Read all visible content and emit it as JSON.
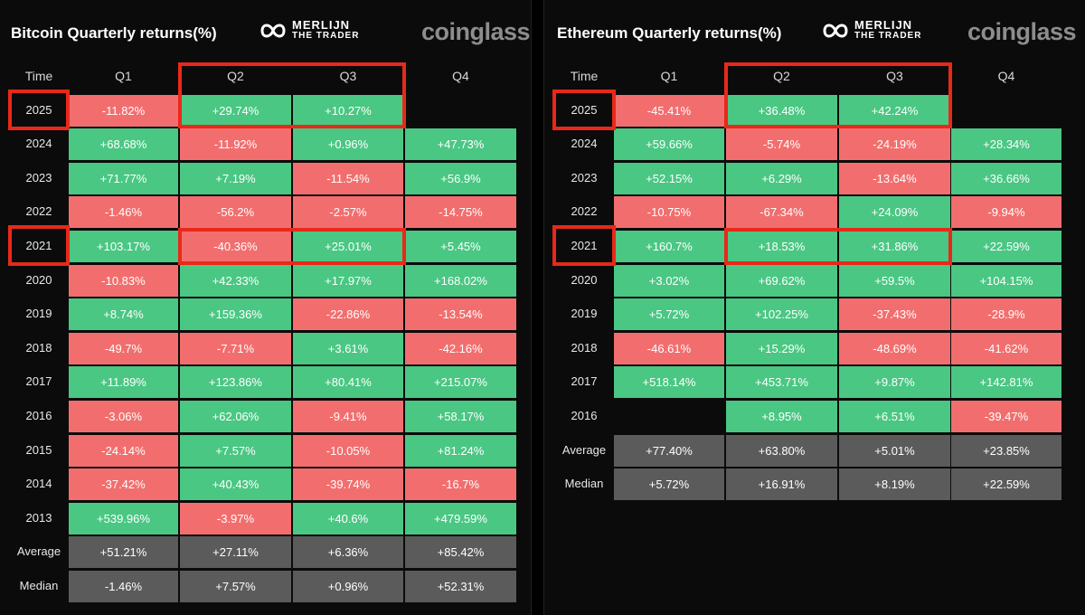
{
  "colors": {
    "positive": "#4ac783",
    "negative": "#f26e6e",
    "stat": "#5b5b5b",
    "highlight": "#e8291a"
  },
  "brand": {
    "line1": "MERLIJN",
    "line2": "THE TRADER",
    "watermark": "coinglass",
    "logo_icon": "infinity-logo-icon"
  },
  "chart_data": [
    {
      "type": "table",
      "title": "Bitcoin Quarterly returns(%)",
      "columns": [
        "Time",
        "Q1",
        "Q2",
        "Q3",
        "Q4"
      ],
      "rows": [
        {
          "year": "2025",
          "values": [
            "-11.82%",
            "+29.74%",
            "+10.27%",
            ""
          ]
        },
        {
          "year": "2024",
          "values": [
            "+68.68%",
            "-11.92%",
            "+0.96%",
            "+47.73%"
          ]
        },
        {
          "year": "2023",
          "values": [
            "+71.77%",
            "+7.19%",
            "-11.54%",
            "+56.9%"
          ]
        },
        {
          "year": "2022",
          "values": [
            "-1.46%",
            "-56.2%",
            "-2.57%",
            "-14.75%"
          ]
        },
        {
          "year": "2021",
          "values": [
            "+103.17%",
            "-40.36%",
            "+25.01%",
            "+5.45%"
          ]
        },
        {
          "year": "2020",
          "values": [
            "-10.83%",
            "+42.33%",
            "+17.97%",
            "+168.02%"
          ]
        },
        {
          "year": "2019",
          "values": [
            "+8.74%",
            "+159.36%",
            "-22.86%",
            "-13.54%"
          ]
        },
        {
          "year": "2018",
          "values": [
            "-49.7%",
            "-7.71%",
            "+3.61%",
            "-42.16%"
          ]
        },
        {
          "year": "2017",
          "values": [
            "+11.89%",
            "+123.86%",
            "+80.41%",
            "+215.07%"
          ]
        },
        {
          "year": "2016",
          "values": [
            "-3.06%",
            "+62.06%",
            "-9.41%",
            "+58.17%"
          ]
        },
        {
          "year": "2015",
          "values": [
            "-24.14%",
            "+7.57%",
            "-10.05%",
            "+81.24%"
          ]
        },
        {
          "year": "2014",
          "values": [
            "-37.42%",
            "+40.43%",
            "-39.74%",
            "-16.7%"
          ]
        },
        {
          "year": "2013",
          "values": [
            "+539.96%",
            "-3.97%",
            "+40.6%",
            "+479.59%"
          ]
        }
      ],
      "stats": [
        {
          "label": "Average",
          "values": [
            "+51.21%",
            "+27.11%",
            "+6.36%",
            "+85.42%"
          ]
        },
        {
          "label": "Median",
          "values": [
            "-1.46%",
            "+7.57%",
            "+0.96%",
            "+52.31%"
          ]
        }
      ],
      "highlights": [
        "Q2-Q3 header",
        "2025",
        "2025 Q2-Q3",
        "2021",
        "2021 Q2-Q3"
      ]
    },
    {
      "type": "table",
      "title": "Ethereum Quarterly returns(%)",
      "columns": [
        "Time",
        "Q1",
        "Q2",
        "Q3",
        "Q4"
      ],
      "rows": [
        {
          "year": "2025",
          "values": [
            "-45.41%",
            "+36.48%",
            "+42.24%",
            ""
          ]
        },
        {
          "year": "2024",
          "values": [
            "+59.66%",
            "-5.74%",
            "-24.19%",
            "+28.34%"
          ]
        },
        {
          "year": "2023",
          "values": [
            "+52.15%",
            "+6.29%",
            "-13.64%",
            "+36.66%"
          ]
        },
        {
          "year": "2022",
          "values": [
            "-10.75%",
            "-67.34%",
            "+24.09%",
            "-9.94%"
          ]
        },
        {
          "year": "2021",
          "values": [
            "+160.7%",
            "+18.53%",
            "+31.86%",
            "+22.59%"
          ]
        },
        {
          "year": "2020",
          "values": [
            "+3.02%",
            "+69.62%",
            "+59.5%",
            "+104.15%"
          ]
        },
        {
          "year": "2019",
          "values": [
            "+5.72%",
            "+102.25%",
            "-37.43%",
            "-28.9%"
          ]
        },
        {
          "year": "2018",
          "values": [
            "-46.61%",
            "+15.29%",
            "-48.69%",
            "-41.62%"
          ]
        },
        {
          "year": "2017",
          "values": [
            "+518.14%",
            "+453.71%",
            "+9.87%",
            "+142.81%"
          ]
        },
        {
          "year": "2016",
          "values": [
            "",
            "+8.95%",
            "+6.51%",
            "-39.47%"
          ]
        }
      ],
      "stats": [
        {
          "label": "Average",
          "values": [
            "+77.40%",
            "+63.80%",
            "+5.01%",
            "+23.85%"
          ]
        },
        {
          "label": "Median",
          "values": [
            "+5.72%",
            "+16.91%",
            "+8.19%",
            "+22.59%"
          ]
        }
      ],
      "highlights": [
        "Q2-Q3 header + 2025 Q2-Q3",
        "2025",
        "2021",
        "2021 Q2-Q3"
      ]
    }
  ]
}
